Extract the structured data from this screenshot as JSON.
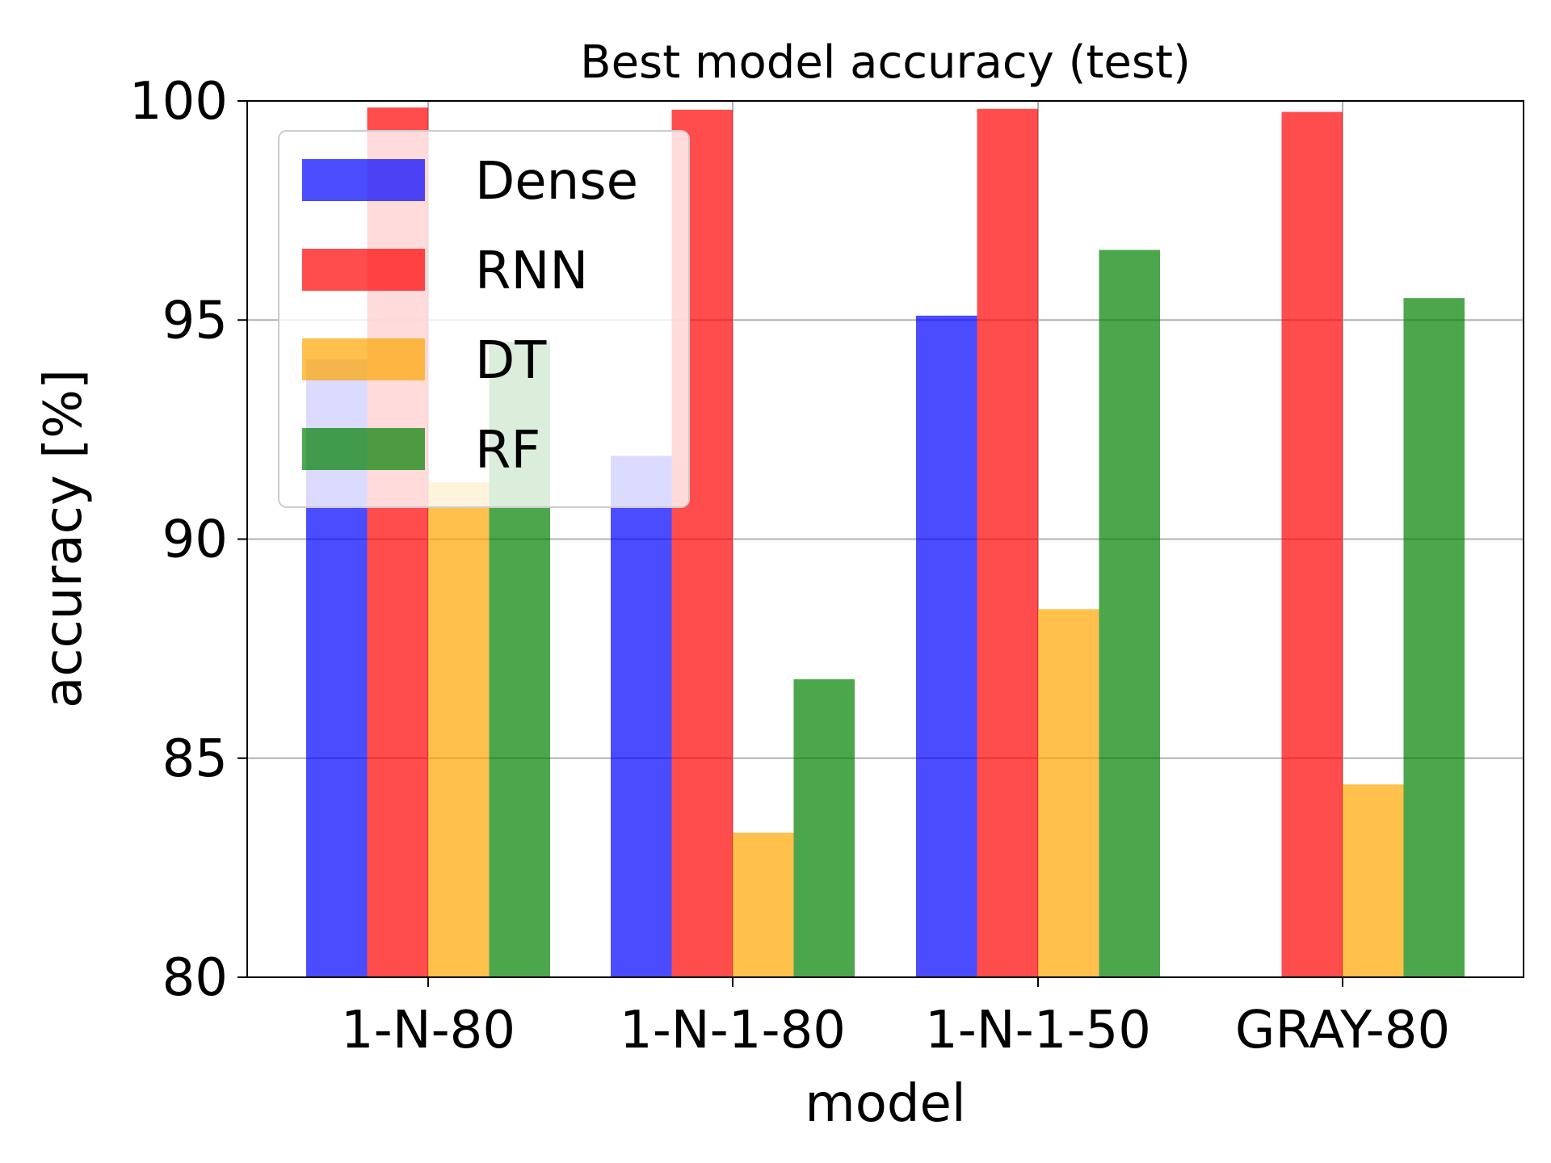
{
  "chart_data": {
    "type": "bar",
    "title": "Best model accuracy (test)",
    "xlabel": "model",
    "ylabel": "accuracy [%]",
    "ylim": [
      80,
      100
    ],
    "yticks": [
      80,
      85,
      90,
      95,
      100
    ],
    "grid": "horizontal",
    "legend_position": "upper-left",
    "categories": [
      "1-N-80",
      "1-N-1-80",
      "1-N-1-50",
      "GRAY-80"
    ],
    "series": [
      {
        "name": "Dense",
        "color": "#0000ff",
        "values": [
          94.1,
          91.9,
          95.1,
          null
        ]
      },
      {
        "name": "RNN",
        "color": "#ff0000",
        "values": [
          99.85,
          99.8,
          99.82,
          99.75
        ]
      },
      {
        "name": "DT",
        "color": "#ffa500",
        "values": [
          91.3,
          83.3,
          88.4,
          84.4
        ]
      },
      {
        "name": "RF",
        "color": "#008000",
        "values": [
          94.5,
          86.8,
          96.6,
          95.5
        ]
      }
    ]
  }
}
